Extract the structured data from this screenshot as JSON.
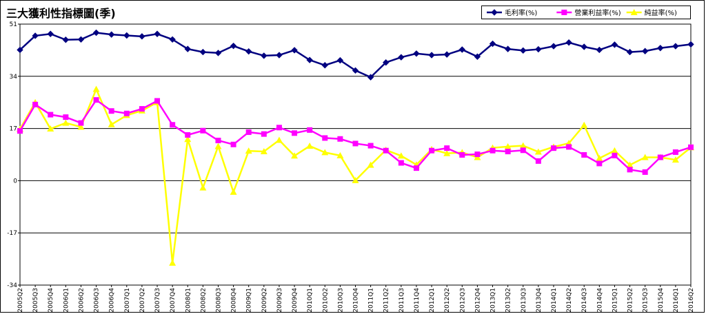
{
  "title": "三大獲利性指標圖(季)",
  "chart_data": {
    "type": "line",
    "title": "三大獲利性指標圖(季)",
    "xlabel": "",
    "ylabel": "",
    "ylim": [
      -34,
      51
    ],
    "yticks": [
      51,
      34,
      17,
      0,
      -17,
      -34
    ],
    "grid": true,
    "legend_position": "top-right",
    "categories": [
      "2005Q2",
      "2005Q3",
      "2005Q4",
      "2006Q1",
      "2006Q2",
      "2006Q3",
      "2006Q4",
      "2007Q1",
      "2007Q2",
      "2007Q3",
      "2007Q4",
      "2008Q1",
      "2008Q2",
      "2008Q3",
      "2008Q4",
      "2009Q1",
      "2009Q2",
      "2009Q3",
      "2009Q4",
      "2010Q1",
      "2010Q2",
      "2010Q3",
      "2010Q4",
      "2011Q1",
      "2011Q2",
      "2011Q3",
      "2011Q4",
      "2012Q1",
      "2012Q2",
      "2012Q3",
      "2012Q4",
      "2013Q1",
      "2013Q2",
      "2013Q3",
      "2013Q4",
      "2014Q1",
      "2014Q2",
      "2014Q3",
      "2014Q4",
      "2015Q1",
      "2015Q2",
      "2015Q3",
      "2015Q4",
      "2016Q1",
      "2016Q2"
    ],
    "series": [
      {
        "name": "毛利率(%)",
        "color": "#000080",
        "marker": "diamond",
        "values": [
          42.6,
          47.2,
          47.8,
          45.9,
          46.0,
          48.2,
          47.6,
          47.3,
          47.0,
          47.8,
          46.0,
          42.9,
          41.9,
          41.6,
          43.9,
          42.1,
          40.7,
          40.9,
          42.5,
          39.3,
          37.6,
          39.2,
          35.9,
          33.7,
          38.5,
          40.2,
          41.4,
          40.9,
          41.1,
          42.7,
          40.4,
          44.6,
          42.9,
          42.4,
          42.8,
          43.8,
          45.0,
          43.6,
          42.6,
          44.3,
          41.9,
          42.2,
          43.2,
          43.8,
          44.4
        ]
      },
      {
        "name": "營業利益率(%)",
        "color": "#ff00ff",
        "marker": "square",
        "values": [
          16.2,
          24.8,
          21.5,
          20.7,
          18.8,
          26.3,
          22.7,
          21.9,
          23.4,
          26.0,
          18.2,
          14.9,
          16.3,
          13.1,
          11.8,
          15.8,
          15.2,
          17.3,
          15.5,
          16.5,
          13.9,
          13.6,
          12.1,
          11.4,
          9.8,
          5.8,
          4.1,
          9.8,
          10.6,
          8.4,
          8.6,
          9.8,
          9.5,
          9.9,
          6.4,
          10.6,
          11.0,
          8.4,
          5.6,
          8.2,
          3.6,
          2.8,
          7.6,
          9.3,
          10.9
        ]
      },
      {
        "name": "純益率(%)",
        "color": "#ffff00",
        "marker": "triangle",
        "values": [
          16.8,
          25.5,
          16.9,
          18.8,
          17.5,
          29.8,
          18.3,
          21.3,
          22.8,
          25.5,
          -26.8,
          13.5,
          -2.3,
          11.2,
          -3.7,
          9.7,
          9.5,
          13.2,
          8.1,
          11.3,
          9.2,
          8.2,
          0.1,
          5.1,
          10.0,
          8.1,
          5.2,
          10.2,
          8.9,
          9.2,
          7.6,
          10.7,
          11.1,
          11.4,
          9.4,
          11.0,
          12.2,
          18.1,
          7.3,
          9.8,
          5.1,
          7.6,
          7.6,
          6.8,
          10.8
        ]
      }
    ]
  }
}
